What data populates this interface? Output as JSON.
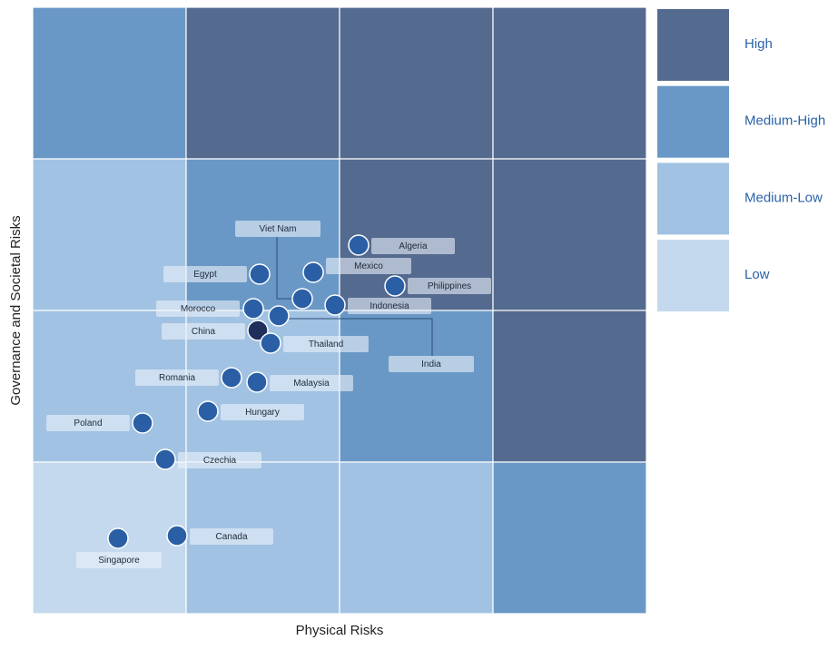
{
  "x_axis_label": "Physical Risks",
  "y_axis_label": "Governance and Societal Risks",
  "legend": [
    {
      "label": "High",
      "color": "#546a8f"
    },
    {
      "label": "Medium-High",
      "color": "#6a98c6"
    },
    {
      "label": "Medium-Low",
      "color": "#a1c2e2"
    },
    {
      "label": "Low",
      "color": "#c4d9ee"
    }
  ],
  "cells": [
    [
      "Medium-High",
      "High",
      "High",
      "High"
    ],
    [
      "Medium-Low",
      "Medium-High",
      "High",
      "High"
    ],
    [
      "Medium-Low",
      "Medium-Low",
      "Medium-High",
      "High"
    ],
    [
      "Low",
      "Medium-Low",
      "Medium-Low",
      "Medium-High"
    ]
  ],
  "countries": [
    {
      "label": "Viet Nam"
    },
    {
      "label": "Algeria"
    },
    {
      "label": "Egypt"
    },
    {
      "label": "Mexico"
    },
    {
      "label": "Philippines"
    },
    {
      "label": "Indonesia"
    },
    {
      "label": "Morocco"
    },
    {
      "label": "China"
    },
    {
      "label": "India"
    },
    {
      "label": "Thailand"
    },
    {
      "label": "Romania"
    },
    {
      "label": "Malaysia"
    },
    {
      "label": "Hungary"
    },
    {
      "label": "Poland"
    },
    {
      "label": "Czechia"
    },
    {
      "label": "Canada"
    },
    {
      "label": "Singapore"
    }
  ]
}
